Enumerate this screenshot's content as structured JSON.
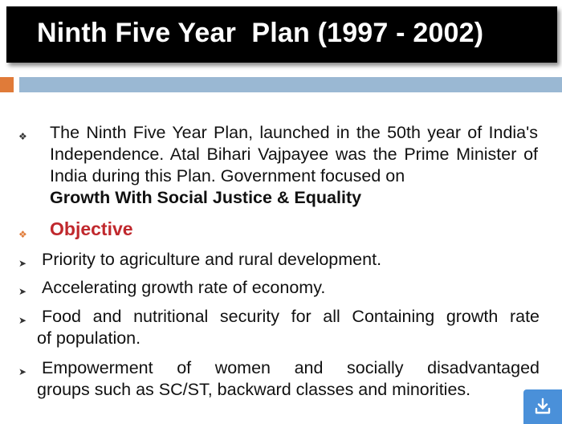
{
  "slide": {
    "title": "Ninth Five Year  Plan (1997 - 2002)",
    "intro": "The Ninth Five Year Plan, launched in the 50th year of India's Independence. Atal Bihari Vajpayee was the Prime Minister of India during this Plan. Government focused on",
    "intro_bold": "Growth With Social Justice & Equality",
    "objective_heading": "Objective",
    "items": [
      "Priority to agriculture and rural development.",
      "Accelerating growth rate of economy.",
      "Food and nutritional security for all Containing growth rate",
      "of population.",
      "Empowerment of women and socially disadvantaged",
      "groups such as SC/ST, backward classes and minorities."
    ]
  },
  "colors": {
    "title_bg": "#000000",
    "accent_orange": "#e07b39",
    "accent_blue": "#9ab8d3",
    "objective_red": "#c0282d",
    "download_button": "#4a90d9"
  },
  "icons": {
    "diamond_bullet": "diamond-bullet-icon",
    "arrow_bullet": "arrowhead-bullet-icon",
    "download": "download-icon"
  }
}
